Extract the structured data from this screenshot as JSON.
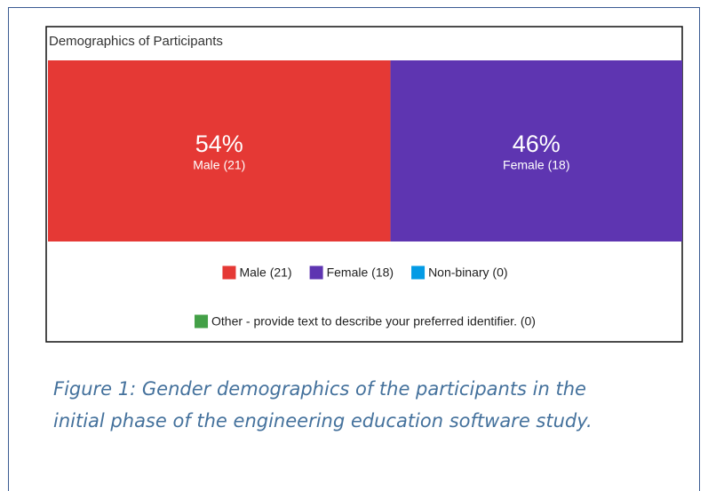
{
  "chart_data": {
    "type": "stackedbar",
    "title": "Demographics of Participants",
    "series": [
      {
        "name": "Male (21)",
        "color": "#e53935",
        "values": [
          54
        ],
        "value_labels": [
          "54%"
        ]
      },
      {
        "name": "Female (18)",
        "color": "#5e35b1",
        "values": [
          46
        ],
        "value_labels": [
          "46%"
        ]
      },
      {
        "name": "Non-binary (0)",
        "color": "#039be5",
        "values": [
          0
        ]
      },
      {
        "name": "Other - provide text to describe your preferred identifier. (0)",
        "color": "#43a047",
        "values": [
          0
        ]
      }
    ]
  },
  "caption": "Figure 1: Gender demographics of the participants in the initial phase of the engineering education software study."
}
